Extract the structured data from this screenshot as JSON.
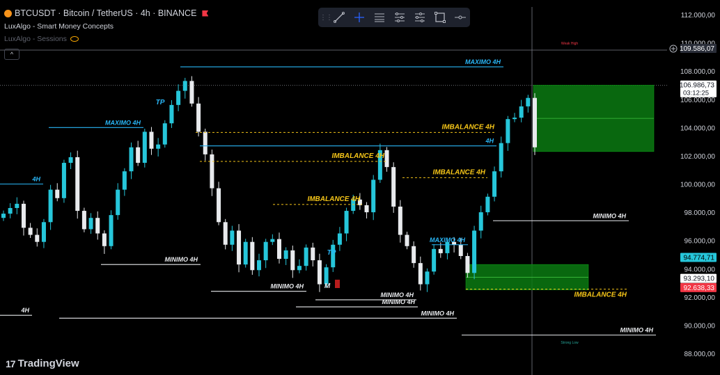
{
  "header": {
    "symbol": "BTCUSDT · Bitcoin / TetherUS · 4h · BINANCE",
    "indicator1": "LuxAlgo - Smart Money Concepts",
    "indicator2": "LuxAlgo - Sessions"
  },
  "toolbar": {
    "tools": [
      "trend-line-tool",
      "crosshair-tool",
      "horizontal-lines-tool",
      "fib-tool",
      "pitchfork-tool",
      "rectangle-tool",
      "horizontal-ray-tool"
    ]
  },
  "branding": {
    "logo_text": "TradingView"
  },
  "colors": {
    "background": "#000000",
    "bull": "#26c6da",
    "bear": "#e8eaed",
    "level_line": "#29b6f6",
    "imbalance": "#f5c518",
    "zone": "#0a7a12",
    "price_current": "#26c6da",
    "price_down": "#f23645"
  },
  "chart_data": {
    "type": "candlestick",
    "symbol": "BTCUSDT",
    "timeframe": "4h",
    "exchange": "BINANCE",
    "ylim": [
      87500,
      112500
    ],
    "y_ticks": [
      "88.000,00",
      "90.000,00",
      "92.000,00",
      "94.000,00",
      "96.000,00",
      "98.000,00",
      "100.000,00",
      "102.000,00",
      "104.000,00",
      "106.000,00",
      "108.000,00",
      "110.000,00",
      "112.000,00"
    ],
    "y_tick_values": [
      88000,
      90000,
      92000,
      94000,
      96000,
      98000,
      100000,
      102000,
      104000,
      106000,
      108000,
      110000,
      112000
    ],
    "price_labels": [
      {
        "text": "109.586,07",
        "value": 109586,
        "style": "dark"
      },
      {
        "text": "106.986,73",
        "sub": "03:12:25",
        "value": 106987,
        "style": "light"
      },
      {
        "text": "94.774,71",
        "value": 94775,
        "style": "cyan"
      },
      {
        "text": "93.293,10",
        "value": 93293,
        "style": "light"
      },
      {
        "text": "92.638,33",
        "value": 92638,
        "style": "red"
      }
    ],
    "close_series": [
      97900,
      98300,
      98600,
      96900,
      96400,
      95900,
      97300,
      99600,
      99000,
      101500,
      101900,
      98100,
      96800,
      97600,
      96500,
      95600,
      97800,
      99600,
      100900,
      102600,
      101500,
      103700,
      102500,
      102800,
      104300,
      105600,
      106600,
      107300,
      105700,
      103700,
      102100,
      99700,
      97300,
      95700,
      96700,
      94300,
      95900,
      93900,
      94600,
      95900,
      96100,
      94700,
      95300,
      93900,
      94200,
      95500,
      94600,
      92900,
      94100,
      95700,
      96500,
      98100,
      98900,
      98500,
      98000,
      100300,
      102400,
      101200,
      98400,
      96400,
      95600,
      94400,
      92900,
      93800,
      95400,
      95100,
      95900,
      95700,
      94900,
      93700,
      96700,
      98000,
      99100,
      100900,
      102900,
      104600,
      104700,
      105500,
      106100,
      102600
    ],
    "levels": [
      {
        "label": "MAXIMO 4H",
        "value": 108300
      },
      {
        "label": "MAXIMO 4H",
        "value": 104000
      },
      {
        "label": "4H",
        "value": 102700
      },
      {
        "label": "4H",
        "value": 100000
      },
      {
        "label": "MINIMO 4H",
        "value": 94300
      },
      {
        "label": "MINIMO 4H",
        "value": 92400
      },
      {
        "label": "MINIMO 4H",
        "value": 91800
      },
      {
        "label": "MINIMO 4H",
        "value": 91300
      },
      {
        "label": "MINIMO 4H",
        "value": 90500
      },
      {
        "label": "4H",
        "value": 90700
      },
      {
        "label": "MINIMO 4H",
        "value": 97400
      },
      {
        "label": "MAXIMO 4H",
        "value": 95700
      },
      {
        "label": "MINIMO 4H",
        "value": 89300
      }
    ],
    "imbalances": [
      {
        "label": "IMBALANCE 4H",
        "value": 103650
      },
      {
        "label": "IMBALANCE 4H",
        "value": 101600
      },
      {
        "label": "IMBALANCE 4H",
        "value": 100450
      },
      {
        "label": "IMBALANCE 4H",
        "value": 98550
      },
      {
        "label": "IMBALANCE 4H",
        "value": 92550
      }
    ],
    "zones": [
      {
        "top": 107000,
        "bottom": 102300
      },
      {
        "top": 94300,
        "bottom": 92500
      }
    ],
    "tags": [
      "TP",
      "TP",
      "M"
    ],
    "session_labels": [
      "Weak High",
      "Strong Low"
    ]
  }
}
